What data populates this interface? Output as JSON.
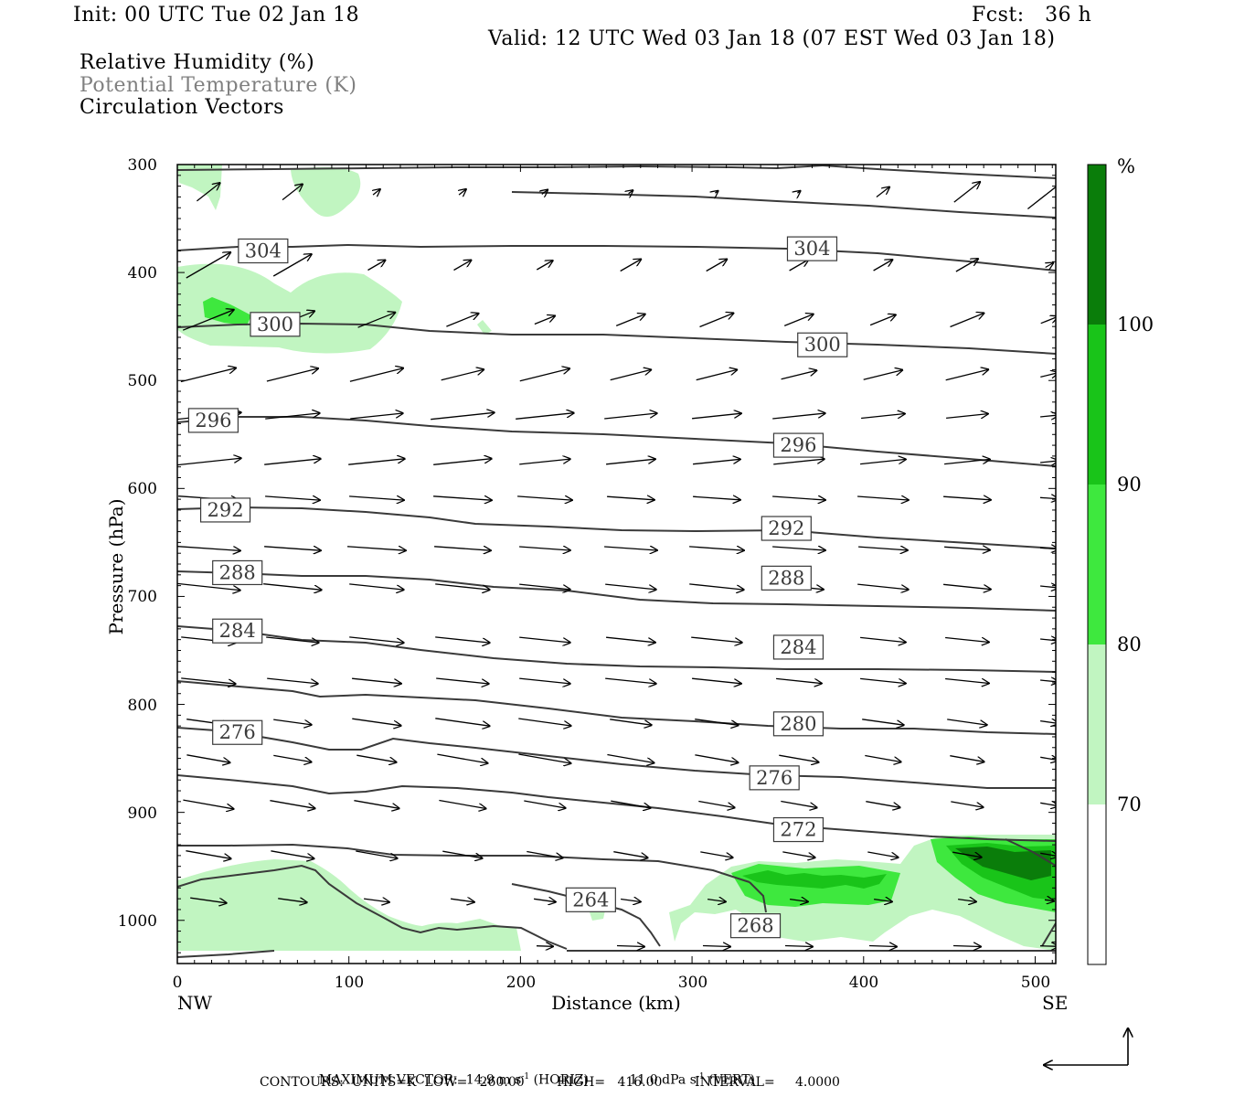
{
  "header": {
    "init": "Init: 00 UTC Tue 02 Jan 18",
    "fcst": "Fcst:   36 h",
    "valid": "Valid: 12 UTC Wed 03 Jan 18 (07 EST Wed 03 Jan 18)"
  },
  "fields": {
    "rh": "Relative Humidity (%)",
    "theta": "Potential Temperature (K)",
    "vectors": "Circulation Vectors"
  },
  "colors": {
    "rh70": "#c1f5c1",
    "rh80": "#3ee83e",
    "rh90": "#19c419",
    "rh100": "#0a7d0a",
    "isentrope": "#3a3a3a",
    "gray_text": "#808080"
  },
  "chart_data": {
    "type": "cross-section",
    "xlabel": "Distance (km)",
    "ylabel": "Pressure (hPa)",
    "x_range": [
      0,
      512
    ],
    "y_range": [
      300,
      1040
    ],
    "x_ticks": [
      "0",
      "100",
      "200",
      "300",
      "400",
      "500"
    ],
    "x_end_labels": {
      "left": "NW",
      "right": "SE"
    },
    "y_ticks": [
      "300",
      "400",
      "500",
      "600",
      "700",
      "800",
      "900",
      "1000"
    ],
    "colorbar": {
      "unit": "%",
      "levels": [
        "70",
        "80",
        "90",
        "100"
      ]
    },
    "isentrope_labels": [
      {
        "value": "304",
        "x": 50,
        "p": 380
      },
      {
        "value": "304",
        "x": 370,
        "p": 378
      },
      {
        "value": "300",
        "x": 57,
        "p": 448
      },
      {
        "value": "300",
        "x": 376,
        "p": 467
      },
      {
        "value": "296",
        "x": 21,
        "p": 537
      },
      {
        "value": "296",
        "x": 362,
        "p": 560
      },
      {
        "value": "292",
        "x": 28,
        "p": 620
      },
      {
        "value": "292",
        "x": 355,
        "p": 637
      },
      {
        "value": "288",
        "x": 35,
        "p": 678
      },
      {
        "value": "288",
        "x": 355,
        "p": 683
      },
      {
        "value": "284",
        "x": 35,
        "p": 732
      },
      {
        "value": "284",
        "x": 362,
        "p": 747
      },
      {
        "value": "276",
        "x": 35,
        "p": 826
      },
      {
        "value": "280",
        "x": 362,
        "p": 818
      },
      {
        "value": "276",
        "x": 348,
        "p": 868
      },
      {
        "value": "272",
        "x": 362,
        "p": 916
      },
      {
        "value": "264",
        "x": 241,
        "p": 981
      },
      {
        "value": "268",
        "x": 337,
        "p": 1005
      }
    ],
    "footer": {
      "max_vector_label": "MAXIMUM VECTOR:",
      "horiz_value": "14.9 m s",
      "horiz_exp": "-1",
      "horiz_tag": "(HORIZ)",
      "vert_value": "11.0 dPa s",
      "vert_exp": "-1",
      "vert_tag": "(VERT)",
      "contours": "CONTOURS:  UNITS=K  LOW=   260.00        HIGH=   416.00        INTERVAL=     4.0000"
    }
  }
}
